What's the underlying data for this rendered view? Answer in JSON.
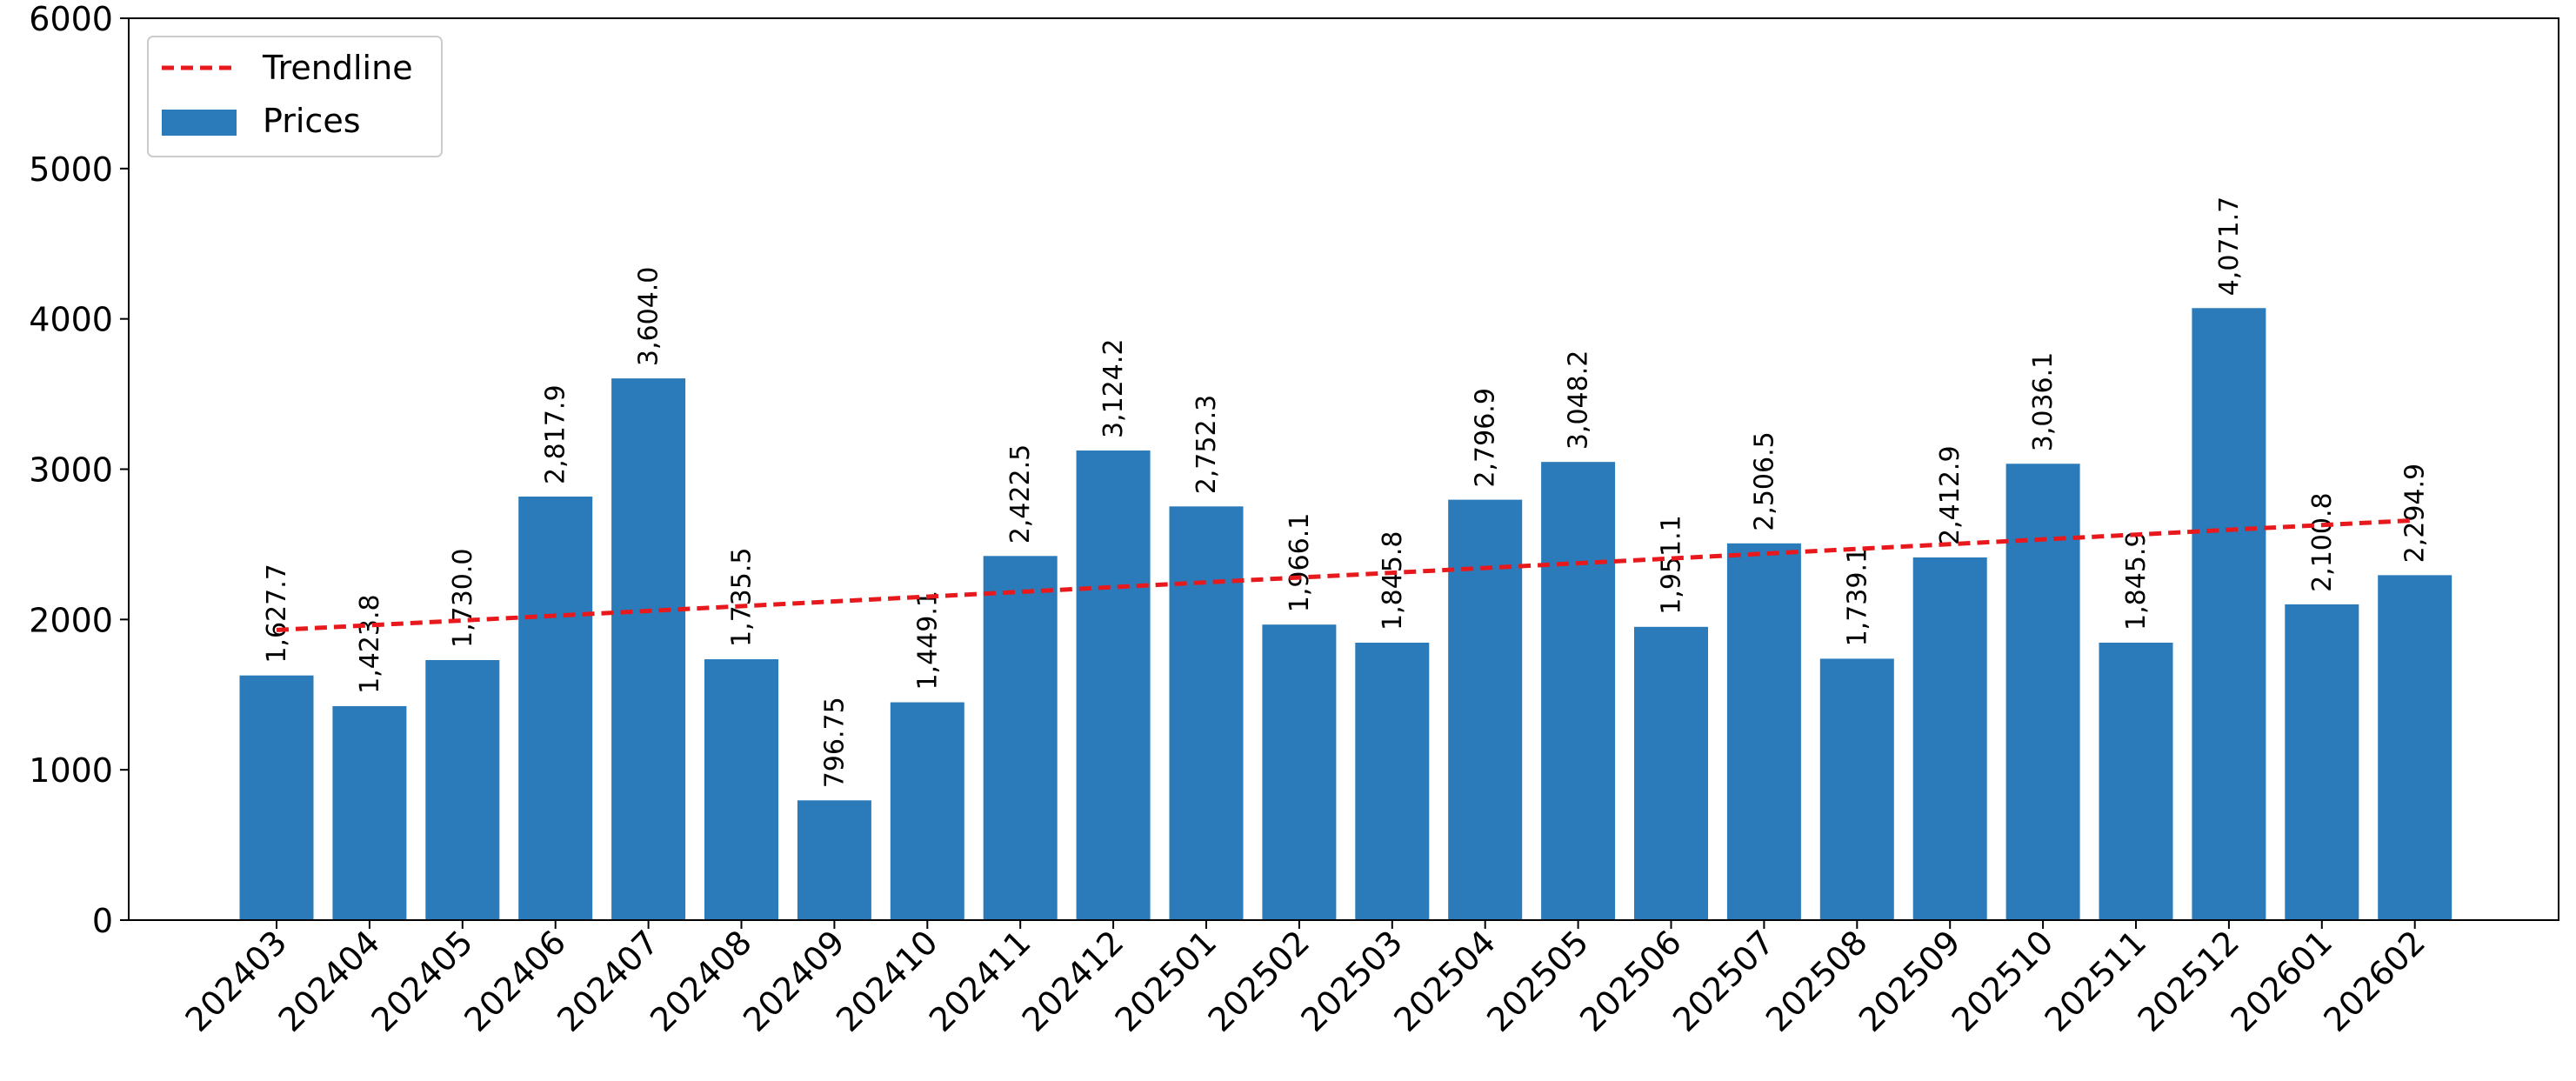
{
  "chart_data": {
    "type": "bar",
    "categories": [
      "202403",
      "202404",
      "202405",
      "202406",
      "202407",
      "202408",
      "202409",
      "202410",
      "202411",
      "202412",
      "202501",
      "202502",
      "202503",
      "202504",
      "202505",
      "202506",
      "202507",
      "202508",
      "202509",
      "202510",
      "202511",
      "202512",
      "202601",
      "202602"
    ],
    "series": [
      {
        "name": "Prices",
        "type": "bar",
        "color": "#2b7bba",
        "values": [
          1627.7,
          1423.8,
          1730.0,
          2817.9,
          3604.0,
          1735.5,
          796.75,
          1449.1,
          2422.5,
          3124.2,
          2752.3,
          1966.1,
          1845.8,
          2796.9,
          3048.2,
          1951.1,
          2506.5,
          1739.1,
          2412.9,
          3036.1,
          1845.9,
          4071.7,
          2100.8,
          2294.9
        ],
        "data_labels": [
          "1,627.7",
          "1,423.8",
          "1,730.0",
          "2,817.9",
          "3,604.0",
          "1,735.5",
          "796.75",
          "1,449.1",
          "2,422.5",
          "3,124.2",
          "2,752.3",
          "1,966.1",
          "1,845.8",
          "2,796.9",
          "3,048.2",
          "1,951.1",
          "2,506.5",
          "1,739.1",
          "2,412.9",
          "3,036.1",
          "1,845.9",
          "4,071.7",
          "2,100.8",
          "2,294.9"
        ]
      },
      {
        "name": "Trendline",
        "type": "line",
        "style": "dashed",
        "color": "#e8191c",
        "start_value": 1930,
        "end_value": 2660
      }
    ],
    "title": "",
    "xlabel": "",
    "ylabel": "",
    "ylim": [
      0,
      6000
    ],
    "yticks": [
      "0",
      "1000",
      "2000",
      "3000",
      "4000",
      "5000",
      "6000"
    ],
    "grid": false,
    "legend_position": "top-left",
    "legend": [
      {
        "label": "Trendline",
        "kind": "dashed-line",
        "color": "#e8191c"
      },
      {
        "label": "Prices",
        "kind": "patch",
        "color": "#2b7bba"
      }
    ]
  }
}
